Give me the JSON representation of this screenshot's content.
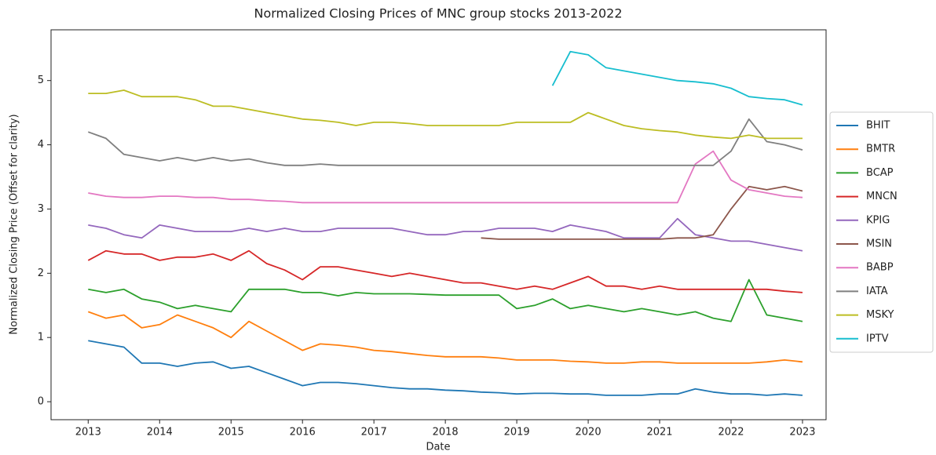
{
  "chart_data": {
    "type": "line",
    "title": "Normalized Closing Prices of MNC group stocks 2013-2022",
    "xlabel": "Date",
    "ylabel": "Normalized Closing Price (Offset for clarity)",
    "x": [
      2013,
      2013.25,
      2013.5,
      2013.75,
      2014,
      2014.25,
      2014.5,
      2014.75,
      2015,
      2015.25,
      2015.5,
      2015.75,
      2016,
      2016.25,
      2016.5,
      2016.75,
      2017,
      2017.25,
      2017.5,
      2017.75,
      2018,
      2018.25,
      2018.5,
      2018.75,
      2019,
      2019.25,
      2019.5,
      2019.75,
      2020,
      2020.25,
      2020.5,
      2020.75,
      2021,
      2021.25,
      2021.5,
      2021.75,
      2022,
      2022.25,
      2022.5,
      2022.75,
      2023
    ],
    "xlim": [
      2012.48,
      2023.33
    ],
    "xticks": [
      2013,
      2014,
      2015,
      2016,
      2017,
      2018,
      2019,
      2020,
      2021,
      2022,
      2023
    ],
    "ylim": [
      -0.28,
      5.79
    ],
    "yticks": [
      0,
      1,
      2,
      3,
      4,
      5
    ],
    "legend": "outside-right",
    "series": [
      {
        "name": "BHIT",
        "color": "#1f77b4",
        "values": [
          0.95,
          0.9,
          0.85,
          0.6,
          0.6,
          0.55,
          0.6,
          0.62,
          0.52,
          0.55,
          0.45,
          0.35,
          0.25,
          0.3,
          0.3,
          0.28,
          0.25,
          0.22,
          0.2,
          0.2,
          0.18,
          0.17,
          0.15,
          0.14,
          0.12,
          0.13,
          0.13,
          0.12,
          0.12,
          0.1,
          0.1,
          0.1,
          0.12,
          0.12,
          0.2,
          0.15,
          0.12,
          0.12,
          0.1,
          0.12,
          0.1
        ]
      },
      {
        "name": "BMTR",
        "color": "#ff7f0e",
        "values": [
          1.4,
          1.3,
          1.35,
          1.15,
          1.2,
          1.35,
          1.25,
          1.15,
          1.0,
          1.25,
          1.1,
          0.95,
          0.8,
          0.9,
          0.88,
          0.85,
          0.8,
          0.78,
          0.75,
          0.72,
          0.7,
          0.7,
          0.7,
          0.68,
          0.65,
          0.65,
          0.65,
          0.63,
          0.62,
          0.6,
          0.6,
          0.62,
          0.62,
          0.6,
          0.6,
          0.6,
          0.6,
          0.6,
          0.62,
          0.65,
          0.62
        ]
      },
      {
        "name": "BCAP",
        "color": "#2ca02c",
        "values": [
          1.75,
          1.7,
          1.75,
          1.6,
          1.55,
          1.45,
          1.5,
          1.45,
          1.4,
          1.75,
          1.75,
          1.75,
          1.7,
          1.7,
          1.65,
          1.7,
          1.68,
          1.68,
          1.68,
          1.67,
          1.66,
          1.66,
          1.66,
          1.66,
          1.45,
          1.5,
          1.6,
          1.45,
          1.5,
          1.45,
          1.4,
          1.45,
          1.4,
          1.35,
          1.4,
          1.3,
          1.25,
          1.9,
          1.35,
          1.3,
          1.25
        ]
      },
      {
        "name": "MNCN",
        "color": "#d62728",
        "values": [
          2.2,
          2.35,
          2.3,
          2.3,
          2.2,
          2.25,
          2.25,
          2.3,
          2.2,
          2.35,
          2.15,
          2.05,
          1.9,
          2.1,
          2.1,
          2.05,
          2.0,
          1.95,
          2.0,
          1.95,
          1.9,
          1.85,
          1.85,
          1.8,
          1.75,
          1.8,
          1.75,
          1.85,
          1.95,
          1.8,
          1.8,
          1.75,
          1.8,
          1.75,
          1.75,
          1.75,
          1.75,
          1.75,
          1.75,
          1.72,
          1.7
        ]
      },
      {
        "name": "KPIG",
        "color": "#9467bd",
        "values": [
          2.75,
          2.7,
          2.6,
          2.55,
          2.75,
          2.7,
          2.65,
          2.65,
          2.65,
          2.7,
          2.65,
          2.7,
          2.65,
          2.65,
          2.7,
          2.7,
          2.7,
          2.7,
          2.65,
          2.6,
          2.6,
          2.65,
          2.65,
          2.7,
          2.7,
          2.7,
          2.65,
          2.75,
          2.7,
          2.65,
          2.55,
          2.55,
          2.55,
          2.85,
          2.6,
          2.55,
          2.5,
          2.5,
          2.45,
          2.4,
          2.35
        ]
      },
      {
        "name": "MSIN",
        "color": "#8c564b",
        "values": [
          null,
          null,
          null,
          null,
          null,
          null,
          null,
          null,
          null,
          null,
          null,
          null,
          null,
          null,
          null,
          null,
          null,
          null,
          null,
          null,
          null,
          null,
          2.55,
          2.53,
          2.53,
          2.53,
          2.53,
          2.53,
          2.53,
          2.53,
          2.53,
          2.53,
          2.53,
          2.55,
          2.55,
          2.6,
          3.0,
          3.35,
          3.3,
          3.35,
          3.28
        ]
      },
      {
        "name": "BABP",
        "color": "#e377c2",
        "values": [
          3.25,
          3.2,
          3.18,
          3.18,
          3.2,
          3.2,
          3.18,
          3.18,
          3.15,
          3.15,
          3.13,
          3.12,
          3.1,
          3.1,
          3.1,
          3.1,
          3.1,
          3.1,
          3.1,
          3.1,
          3.1,
          3.1,
          3.1,
          3.1,
          3.1,
          3.1,
          3.1,
          3.1,
          3.1,
          3.1,
          3.1,
          3.1,
          3.1,
          3.1,
          3.7,
          3.9,
          3.45,
          3.3,
          3.25,
          3.2,
          3.18
        ]
      },
      {
        "name": "IATA",
        "color": "#7f7f7f",
        "values": [
          4.2,
          4.1,
          3.85,
          3.8,
          3.75,
          3.8,
          3.75,
          3.8,
          3.75,
          3.78,
          3.72,
          3.68,
          3.68,
          3.7,
          3.68,
          3.68,
          3.68,
          3.68,
          3.68,
          3.68,
          3.68,
          3.68,
          3.68,
          3.68,
          3.68,
          3.68,
          3.68,
          3.68,
          3.68,
          3.68,
          3.68,
          3.68,
          3.68,
          3.68,
          3.68,
          3.68,
          3.9,
          4.4,
          4.05,
          4.0,
          3.92
        ]
      },
      {
        "name": "MSKY",
        "color": "#bcbd22",
        "values": [
          4.8,
          4.8,
          4.85,
          4.75,
          4.75,
          4.75,
          4.7,
          4.6,
          4.6,
          4.55,
          4.5,
          4.45,
          4.4,
          4.38,
          4.35,
          4.3,
          4.35,
          4.35,
          4.33,
          4.3,
          4.3,
          4.3,
          4.3,
          4.3,
          4.35,
          4.35,
          4.35,
          4.35,
          4.5,
          4.4,
          4.3,
          4.25,
          4.22,
          4.2,
          4.15,
          4.12,
          4.1,
          4.15,
          4.1,
          4.1,
          4.1
        ]
      },
      {
        "name": "IPTV",
        "color": "#17becf",
        "values": [
          null,
          null,
          null,
          null,
          null,
          null,
          null,
          null,
          null,
          null,
          null,
          null,
          null,
          null,
          null,
          null,
          null,
          null,
          null,
          null,
          null,
          null,
          null,
          null,
          null,
          null,
          4.92,
          5.45,
          5.4,
          5.2,
          5.15,
          5.1,
          5.05,
          5.0,
          4.98,
          4.95,
          4.88,
          4.75,
          4.72,
          4.7,
          4.62
        ]
      }
    ]
  }
}
